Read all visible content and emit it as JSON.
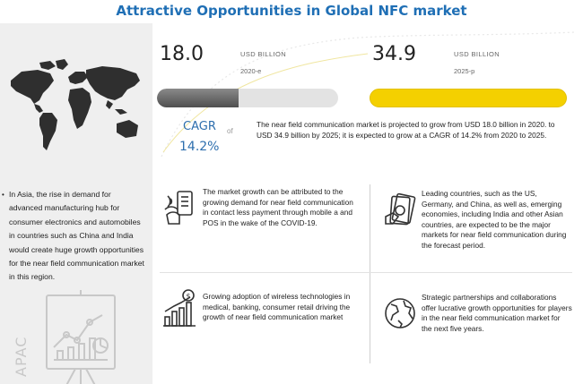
{
  "title": "Attractive Opportunities in Global NFC market",
  "market": {
    "value_2020": "18.0",
    "unit_2020": "USD BILLION",
    "year_2020": "2020-e",
    "value_2025": "34.9",
    "unit_2025": "USD BILLION",
    "year_2025": "2025-p",
    "bar_2020_fraction": 0.45,
    "bar_2025_fraction": 1.0
  },
  "cagr": {
    "label": "CAGR",
    "of": "of",
    "value": "14.2%"
  },
  "summary": "The near field communication market is projected to grow from USD 18.0 billion in 2020. to USD 34.9 billion by 2025; it is expected to grow at a CAGR of 14.2% from 2020 to 2025.",
  "left": {
    "bullet": "•",
    "asia_note": "In Asia, the rise in demand for advanced manufacturing hub for consumer electronics and automobiles in countries such as China and India would create huge growth opportunities for the near field communication market in this region.",
    "region_label": "APAC"
  },
  "insights": [
    {
      "icon": "contactless-payment-icon",
      "text": "The market growth can be attributed to the growing demand for near field communication in contact less payment through mobile a and POS in the wake of the COVID-19."
    },
    {
      "icon": "cash-money-icon",
      "text": "Leading countries, such as the US, Germany, and China, as well as, emerging economies, including India and other Asian countries, are expected to be the major markets for near field communication during the forecast period."
    },
    {
      "icon": "growth-chart-icon",
      "text": "Growing adoption of wireless technologies in medical, banking, consumer retail driving the growth of near field communication market"
    },
    {
      "icon": "globe-icon",
      "text": "Strategic partnerships and collaborations offer lucrative growth opportunities for players in the near field communication market for the next five years."
    }
  ],
  "colors": {
    "title": "#1f6fb5",
    "accent_blue": "#2e6fae",
    "bar_2020": "#5a5a5a",
    "bar_2025": "#f4d000",
    "panel_bg": "#efefef"
  }
}
